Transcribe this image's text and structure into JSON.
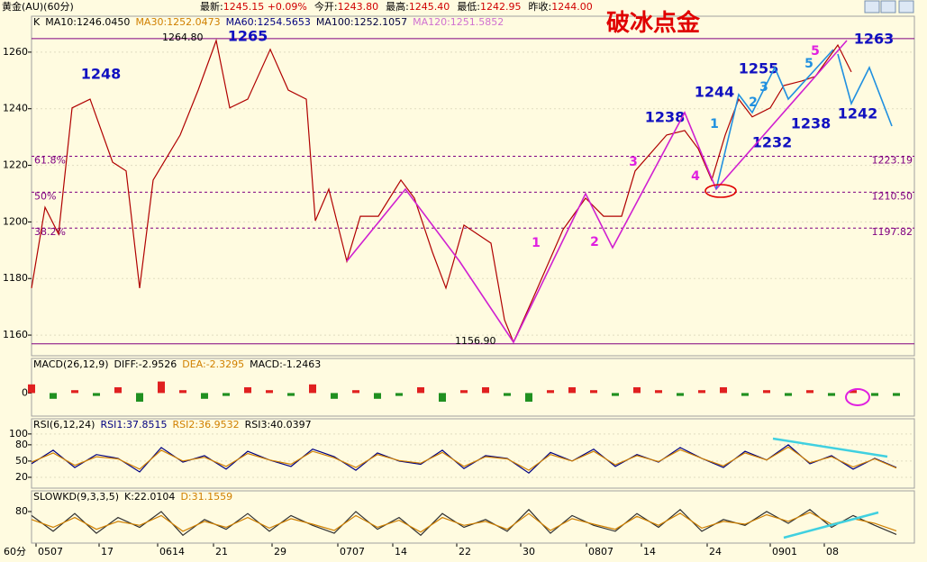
{
  "header": {
    "symbol": "黄金(AU)(60分)",
    "quote": [
      {
        "label": "最新:",
        "value": "1245.15 +0.09%"
      },
      {
        "label": "今开:",
        "value": "1243.80"
      },
      {
        "label": "最高:",
        "value": "1245.40"
      },
      {
        "label": "最低:",
        "value": "1242.95"
      },
      {
        "label": "昨收:",
        "value": "1244.00"
      }
    ],
    "period": "60分"
  },
  "chart_data": [
    {
      "type": "line",
      "title": "破冰点金",
      "color": "#b00000",
      "indicator_labels": [
        {
          "text": "K",
          "color": "#000000"
        },
        {
          "text": "MA10:1246.0450",
          "color": "#000000"
        },
        {
          "text": "MA30:1252.0473",
          "color": "#d08000"
        },
        {
          "text": "MA60:1254.5653",
          "color": "#000080"
        },
        {
          "text": "MA100:1252.1057",
          "color": "#000040"
        },
        {
          "text": "MA120:1251.5852",
          "color": "#d070d0"
        }
      ],
      "x": [
        0,
        15,
        30,
        45,
        65,
        90,
        105,
        120,
        135,
        165,
        185,
        205,
        220,
        240,
        265,
        285,
        305,
        315,
        330,
        350,
        365,
        385,
        410,
        425,
        445,
        460,
        480,
        510,
        525,
        535,
        555,
        590,
        615,
        635,
        655,
        670,
        705,
        725,
        740,
        755,
        770,
        785,
        800,
        820,
        835,
        855,
        870,
        895,
        910
      ],
      "values": [
        1176.6,
        1205.2,
        1195.7,
        1240.3,
        1243.4,
        1221.1,
        1218.0,
        1176.6,
        1214.8,
        1230.7,
        1246.6,
        1264.1,
        1240.3,
        1243.4,
        1261.0,
        1246.6,
        1243.4,
        1200.4,
        1211.6,
        1186.1,
        1202.0,
        1202.0,
        1214.8,
        1208.4,
        1189.3,
        1176.6,
        1198.9,
        1192.5,
        1165.4,
        1157.5,
        1171.8,
        1197.3,
        1208.4,
        1202.0,
        1202.0,
        1218.0,
        1230.7,
        1232.3,
        1225.9,
        1214.8,
        1230.7,
        1243.4,
        1237.1,
        1240.3,
        1248.2,
        1249.8,
        1251.4,
        1262.5,
        1253.0
      ],
      "xlim": [
        0,
        980
      ],
      "xticks": [
        {
          "value": 5,
          "label": "0507"
        },
        {
          "value": 75,
          "label": "17"
        },
        {
          "value": 140,
          "label": "0614"
        },
        {
          "value": 202,
          "label": "21"
        },
        {
          "value": 267,
          "label": "29"
        },
        {
          "value": 340,
          "label": "0707"
        },
        {
          "value": 401,
          "label": "14"
        },
        {
          "value": 472,
          "label": "22"
        },
        {
          "value": 543,
          "label": "30"
        },
        {
          "value": 616,
          "label": "0807"
        },
        {
          "value": 677,
          "label": "14"
        },
        {
          "value": 750,
          "label": "24"
        },
        {
          "value": 820,
          "label": "0901"
        },
        {
          "value": 880,
          "label": "08"
        }
      ],
      "ylim": [
        1152.7,
        1272.7
      ],
      "yticks": [
        1160,
        1180,
        1200,
        1220,
        1240,
        1260
      ],
      "levels": [
        {
          "value": 1264.8,
          "label": "1264.80"
        },
        {
          "value": 1156.9,
          "label": "1156.90"
        }
      ],
      "fib_levels": [
        {
          "value": 1223.19,
          "ratio": "61.8%",
          "label": "1223.19"
        },
        {
          "value": 1210.5,
          "ratio": "50%",
          "label": "1210.50"
        },
        {
          "value": 1197.82,
          "ratio": "38.2%",
          "label": "1197.82"
        }
      ],
      "annotations": [
        {
          "text": "1248",
          "color": "#1010c0"
        },
        {
          "text": "1265",
          "color": "#1010c0"
        },
        {
          "text": "1263",
          "color": "#1010c0"
        },
        {
          "text": "1255",
          "color": "#1010c0"
        },
        {
          "text": "1244",
          "color": "#1010c0"
        },
        {
          "text": "1238",
          "color": "#1010c0"
        },
        {
          "text": "1232",
          "color": "#1010c0"
        },
        {
          "text": "1238",
          "color": "#1010c0"
        },
        {
          "text": "1242",
          "color": "#1010c0"
        },
        {
          "text": "1",
          "color": "#e020e0"
        },
        {
          "text": "2",
          "color": "#e020e0"
        },
        {
          "text": "3",
          "color": "#e020e0"
        },
        {
          "text": "4",
          "color": "#e020e0"
        },
        {
          "text": "5",
          "color": "#e020e0"
        },
        {
          "text": "1",
          "color": "#2090e0"
        },
        {
          "text": "2",
          "color": "#2090e0"
        },
        {
          "text": "3",
          "color": "#2090e0"
        },
        {
          "text": "5",
          "color": "#2090e0"
        }
      ]
    },
    {
      "type": "bar",
      "indicator_labels": [
        {
          "text": "MACD(26,12,9)",
          "color": "#000000"
        },
        {
          "text": "DIFF:-2.9526",
          "color": "#000000"
        },
        {
          "text": "DEA:-2.3295",
          "color": "#d08000"
        },
        {
          "text": "MACD:-1.2463",
          "color": "#000000"
        }
      ],
      "x": [
        0,
        24,
        48,
        72,
        96,
        120,
        144,
        168,
        192,
        216,
        240,
        264,
        288,
        312,
        336,
        360,
        384,
        408,
        432,
        456,
        480,
        504,
        528,
        552,
        576,
        600,
        624,
        648,
        672,
        696,
        720,
        744,
        768,
        792,
        816,
        840,
        864,
        888,
        912,
        936,
        960
      ],
      "values": [
        3,
        -2,
        1,
        -1,
        2,
        -3,
        4,
        1,
        -2,
        -1,
        2,
        1,
        -1,
        3,
        -2,
        1,
        -2,
        -1,
        2,
        -3,
        1,
        2,
        -1,
        -3,
        1,
        2,
        1,
        -1,
        2,
        1,
        -1,
        1,
        2,
        -1,
        1,
        -1,
        1,
        -1,
        1,
        -1,
        -1
      ],
      "colors": {
        "up": "#e02020",
        "down": "#209020"
      },
      "xlim": [
        0,
        980
      ],
      "ylim": [
        -8,
        12
      ],
      "yticks": [
        0
      ]
    },
    {
      "type": "line",
      "indicator_labels": [
        {
          "text": "RSI(6,12,24)",
          "color": "#000000"
        },
        {
          "text": "RSI1:37.8515",
          "color": "#000080"
        },
        {
          "text": "RSI2:36.9532",
          "color": "#d08000"
        },
        {
          "text": "RSI3:40.0397",
          "color": "#000000"
        }
      ],
      "x": [
        0,
        24,
        48,
        72,
        96,
        120,
        144,
        168,
        192,
        216,
        240,
        264,
        288,
        312,
        336,
        360,
        384,
        408,
        432,
        456,
        480,
        504,
        528,
        552,
        576,
        600,
        624,
        648,
        672,
        696,
        720,
        744,
        768,
        792,
        816,
        840,
        864,
        888,
        912,
        936,
        960
      ],
      "series": [
        {
          "color": "#000080",
          "values": [
            45,
            70,
            38,
            62,
            55,
            30,
            75,
            48,
            60,
            35,
            68,
            52,
            40,
            72,
            58,
            33,
            65,
            50,
            44,
            70,
            36,
            60,
            55,
            28,
            66,
            50,
            72,
            40,
            62,
            48,
            75,
            55,
            38,
            68,
            52,
            80,
            45,
            60,
            35,
            55,
            38
          ]
        },
        {
          "color": "#d08000",
          "values": [
            48,
            65,
            42,
            58,
            54,
            35,
            70,
            50,
            57,
            40,
            64,
            52,
            44,
            68,
            56,
            38,
            62,
            51,
            46,
            66,
            40,
            58,
            54,
            33,
            62,
            50,
            68,
            43,
            60,
            49,
            71,
            55,
            41,
            65,
            52,
            76,
            47,
            58,
            39,
            54,
            37
          ]
        }
      ],
      "xlim": [
        0,
        980
      ],
      "ylim": [
        0,
        128
      ],
      "yticks": [
        20,
        50,
        80,
        100
      ]
    },
    {
      "type": "line",
      "indicator_labels": [
        {
          "text": "SLOWKD(9,3,3,5)",
          "color": "#000000"
        },
        {
          "text": "K:22.0104",
          "color": "#000000"
        },
        {
          "text": "D:31.1559",
          "color": "#d08000"
        }
      ],
      "x": [
        0,
        24,
        48,
        72,
        96,
        120,
        144,
        168,
        192,
        216,
        240,
        264,
        288,
        312,
        336,
        360,
        384,
        408,
        432,
        456,
        480,
        504,
        528,
        552,
        576,
        600,
        624,
        648,
        672,
        696,
        720,
        744,
        768,
        792,
        816,
        840,
        864,
        888,
        912,
        936,
        960
      ],
      "series": [
        {
          "color": "#303030",
          "values": [
            70,
            30,
            75,
            25,
            65,
            40,
            80,
            20,
            60,
            35,
            75,
            30,
            70,
            45,
            25,
            80,
            35,
            65,
            20,
            75,
            40,
            60,
            30,
            85,
            25,
            70,
            45,
            30,
            75,
            40,
            85,
            30,
            60,
            45,
            80,
            50,
            85,
            40,
            70,
            45,
            22
          ]
        },
        {
          "color": "#d08000",
          "values": [
            60,
            40,
            65,
            35,
            55,
            45,
            70,
            30,
            55,
            40,
            65,
            38,
            62,
            48,
            32,
            70,
            40,
            58,
            28,
            65,
            45,
            55,
            35,
            75,
            32,
            62,
            48,
            35,
            68,
            45,
            76,
            38,
            55,
            48,
            72,
            55,
            78,
            48,
            62,
            50,
            31
          ]
        }
      ],
      "xlim": [
        0,
        980
      ],
      "ylim": [
        0,
        132.6
      ],
      "yticks": [
        80
      ]
    }
  ]
}
